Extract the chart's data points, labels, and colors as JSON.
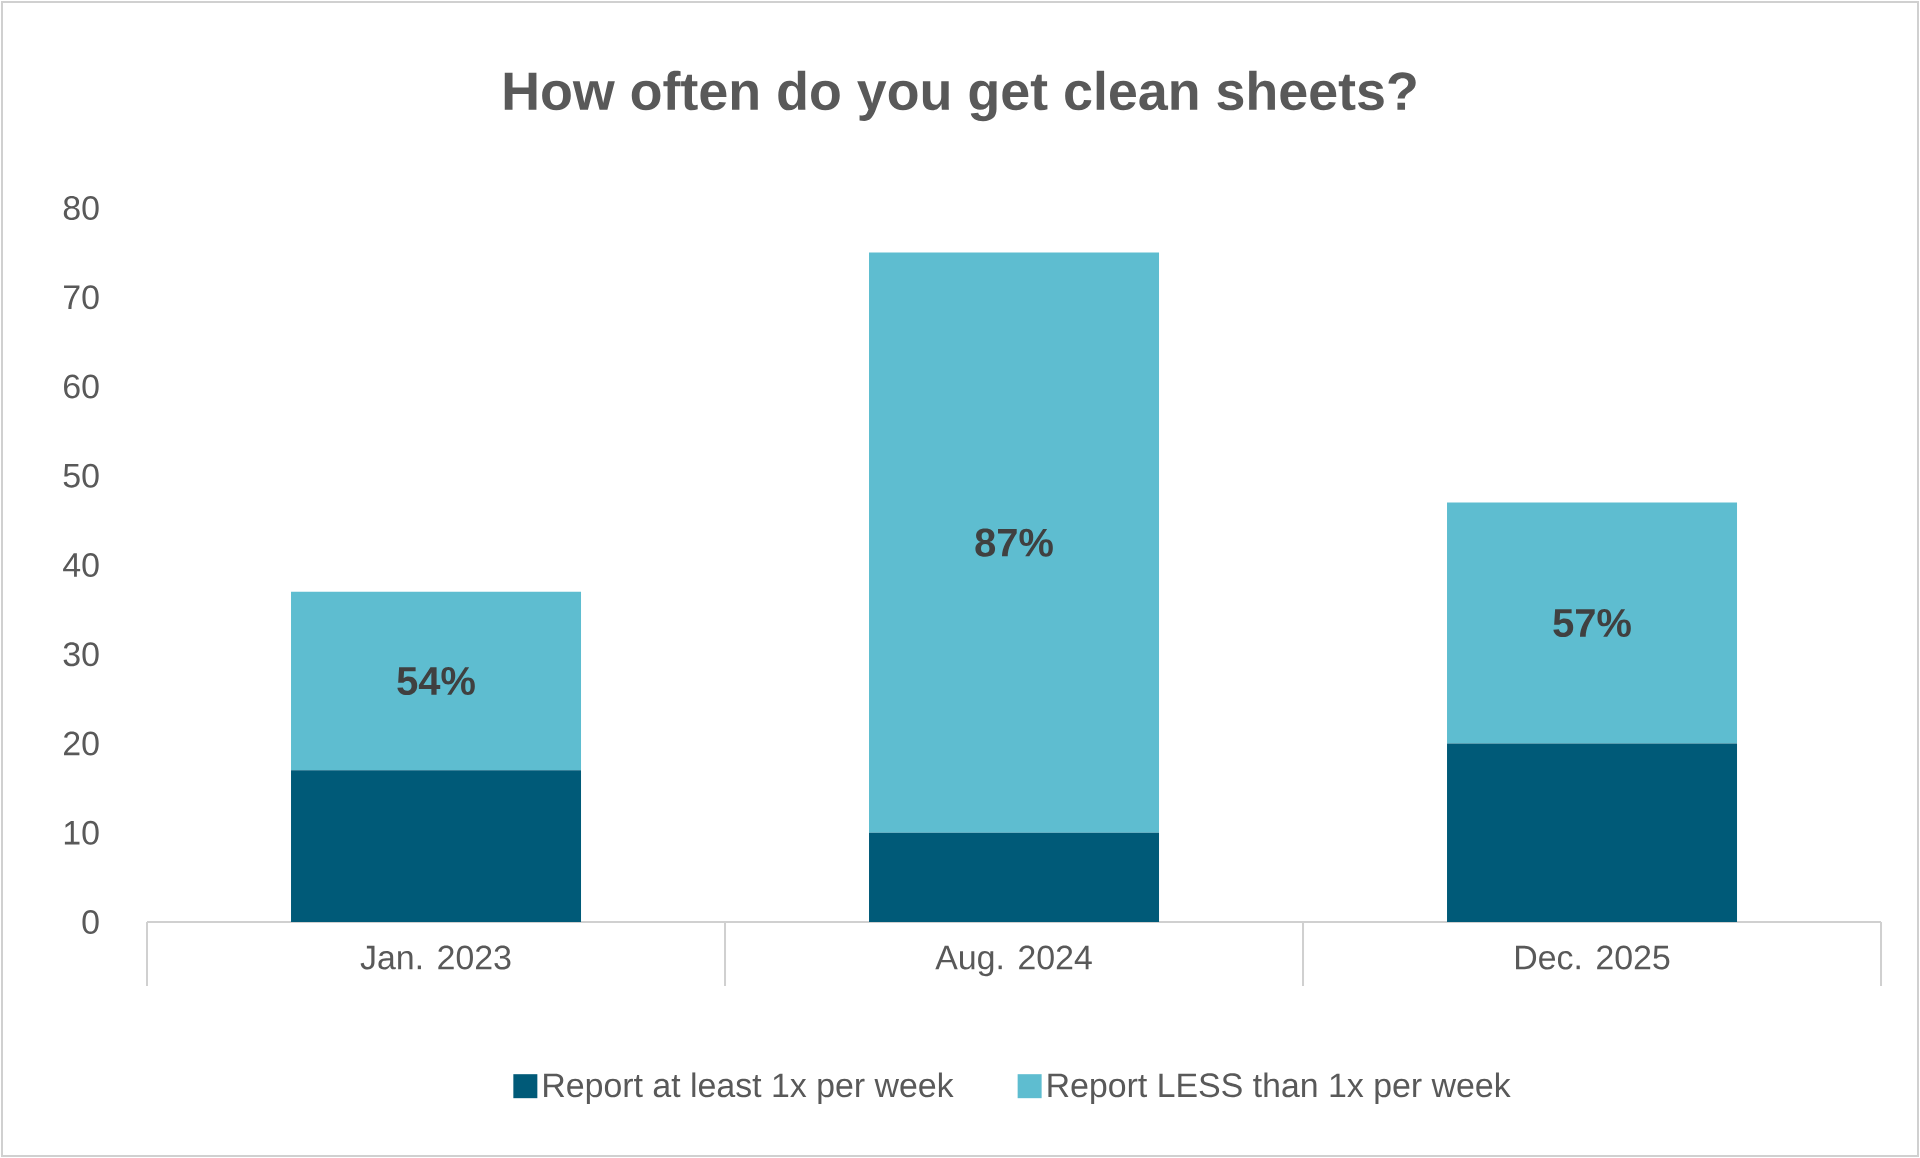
{
  "chart_data": {
    "type": "bar",
    "title": "How often do you get clean sheets?",
    "stacked": true,
    "categories": [
      "Jan. 2023",
      "Aug. 2024",
      "Dec. 2025"
    ],
    "series": [
      {
        "name": "Report at least 1x per week",
        "color": "#005a78",
        "values": [
          17,
          10,
          20
        ]
      },
      {
        "name": "Report LESS than 1x per week",
        "color": "#5ebdd0",
        "values": [
          20,
          65,
          27
        ]
      }
    ],
    "annotations": [
      "54%",
      "87%",
      "57%"
    ],
    "ylim": [
      0,
      80
    ],
    "yticks": [
      0,
      10,
      20,
      30,
      40,
      50,
      60,
      70,
      80
    ],
    "grid": false,
    "legend": "bottom"
  }
}
